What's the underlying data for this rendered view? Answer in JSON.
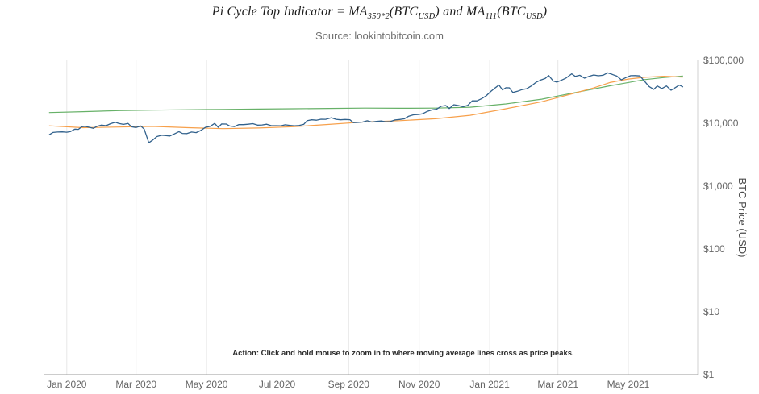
{
  "header": {
    "title": {
      "p0": "Pi Cycle Top Indicator = MA",
      "s0": "350*2",
      "p1": "(BTC",
      "s1": "USD",
      "p2": ") and MA",
      "s2": "111",
      "p3": "(BTC",
      "s3": "USD",
      "p4": ")"
    },
    "source": "Source: lookintobitcoin.com"
  },
  "chart_data": {
    "type": "line",
    "title": "Pi Cycle Top Indicator = MA350*2(BTCUSD) and MA111(BTCUSD)",
    "source": "Source: lookintobitcoin.com",
    "annotation": "Action: Click and hold mouse to zoom in to where moving average lines cross as price peaks.",
    "legend": "off",
    "x_axis": {
      "domain": [
        "2019-12-14",
        "2021-06-30"
      ],
      "ticks": [
        {
          "label": "Jan 2020",
          "date": "2020-01-01"
        },
        {
          "label": "Mar 2020",
          "date": "2020-03-01"
        },
        {
          "label": "May 2020",
          "date": "2020-05-01"
        },
        {
          "label": "Jul 2020",
          "date": "2020-07-01"
        },
        {
          "label": "Sep 2020",
          "date": "2020-09-01"
        },
        {
          "label": "Nov 2020",
          "date": "2020-11-01"
        },
        {
          "label": "Jan 2021",
          "date": "2021-01-01"
        },
        {
          "label": "Mar 2021",
          "date": "2021-03-01"
        },
        {
          "label": "May 2021",
          "date": "2021-05-01"
        }
      ]
    },
    "y_axis": {
      "label": "BTC Price (USD)",
      "scale": "log",
      "domain": [
        1,
        100000
      ],
      "ticks": [
        {
          "label": "$100,000",
          "value": 100000
        },
        {
          "label": "$10,000",
          "value": 10000
        },
        {
          "label": "$1,000",
          "value": 1000
        },
        {
          "label": "$100",
          "value": 100
        },
        {
          "label": "$10",
          "value": 10
        },
        {
          "label": "$1",
          "value": 1
        }
      ]
    },
    "style": {
      "grid_color": "#e6e6e6",
      "bottom_axis_color": "#9a9a9a",
      "right_axis_color": "#d2d2d2",
      "tick_label_color": "#666666",
      "axis_title_color": "#4d4d4d",
      "annotation_color": "#2b2b2b",
      "background": "#ffffff"
    },
    "series": [
      {
        "id": "ma-350x2",
        "name": "MA350*2 (BTCUSD)",
        "color": "#67b168",
        "width": 1.2,
        "points": [
          [
            "2019-12-17",
            14800
          ],
          [
            "2020-01-15",
            15300
          ],
          [
            "2020-02-15",
            15900
          ],
          [
            "2020-03-15",
            16200
          ],
          [
            "2020-04-15",
            16400
          ],
          [
            "2020-05-15",
            16600
          ],
          [
            "2020-06-15",
            16800
          ],
          [
            "2020-07-15",
            17000
          ],
          [
            "2020-08-15",
            17200
          ],
          [
            "2020-09-15",
            17400
          ],
          [
            "2020-10-15",
            17300
          ],
          [
            "2020-11-15",
            17400
          ],
          [
            "2020-12-15",
            18000
          ],
          [
            "2021-01-15",
            20300
          ],
          [
            "2021-02-15",
            24200
          ],
          [
            "2021-03-15",
            30500
          ],
          [
            "2021-04-15",
            39500
          ],
          [
            "2021-05-15",
            49500
          ],
          [
            "2021-06-01",
            53500
          ],
          [
            "2021-06-17",
            56500
          ]
        ]
      },
      {
        "id": "ma-111",
        "name": "MA111 (BTCUSD)",
        "color": "#f7a04b",
        "width": 1.2,
        "points": [
          [
            "2019-12-17",
            9100
          ],
          [
            "2020-01-15",
            8500
          ],
          [
            "2020-02-15",
            8700
          ],
          [
            "2020-03-15",
            8900
          ],
          [
            "2020-04-15",
            8500
          ],
          [
            "2020-05-15",
            8200
          ],
          [
            "2020-06-15",
            8400
          ],
          [
            "2020-07-15",
            8800
          ],
          [
            "2020-08-15",
            9600
          ],
          [
            "2020-09-15",
            10500
          ],
          [
            "2020-10-15",
            11000
          ],
          [
            "2020-11-15",
            11800
          ],
          [
            "2020-12-15",
            13400
          ],
          [
            "2021-01-15",
            17000
          ],
          [
            "2021-02-15",
            22000
          ],
          [
            "2021-03-15",
            30000
          ],
          [
            "2021-04-01",
            36500
          ],
          [
            "2021-04-15",
            44500
          ],
          [
            "2021-05-01",
            50500
          ],
          [
            "2021-05-15",
            54000
          ],
          [
            "2021-06-01",
            56000
          ],
          [
            "2021-06-17",
            54500
          ]
        ]
      },
      {
        "id": "btc-price",
        "name": "BTC Price (USD)",
        "color": "#31618c",
        "width": 1.3,
        "points": [
          [
            "2019-12-17",
            6600
          ],
          [
            "2019-12-20",
            7150
          ],
          [
            "2019-12-24",
            7250
          ],
          [
            "2019-12-28",
            7300
          ],
          [
            "2020-01-01",
            7200
          ],
          [
            "2020-01-04",
            7350
          ],
          [
            "2020-01-08",
            8050
          ],
          [
            "2020-01-11",
            8000
          ],
          [
            "2020-01-14",
            8800
          ],
          [
            "2020-01-17",
            8900
          ],
          [
            "2020-01-20",
            8650
          ],
          [
            "2020-01-24",
            8300
          ],
          [
            "2020-01-27",
            8900
          ],
          [
            "2020-01-31",
            9350
          ],
          [
            "2020-02-04",
            9150
          ],
          [
            "2020-02-08",
            9850
          ],
          [
            "2020-02-12",
            10350
          ],
          [
            "2020-02-15",
            9950
          ],
          [
            "2020-02-19",
            9600
          ],
          [
            "2020-02-23",
            9950
          ],
          [
            "2020-02-26",
            8800
          ],
          [
            "2020-03-01",
            8550
          ],
          [
            "2020-03-05",
            9050
          ],
          [
            "2020-03-08",
            8050
          ],
          [
            "2020-03-12",
            4900
          ],
          [
            "2020-03-15",
            5350
          ],
          [
            "2020-03-19",
            6150
          ],
          [
            "2020-03-23",
            6450
          ],
          [
            "2020-03-27",
            6350
          ],
          [
            "2020-03-30",
            6250
          ],
          [
            "2020-04-03",
            6750
          ],
          [
            "2020-04-07",
            7350
          ],
          [
            "2020-04-10",
            6900
          ],
          [
            "2020-04-14",
            6850
          ],
          [
            "2020-04-18",
            7250
          ],
          [
            "2020-04-22",
            7100
          ],
          [
            "2020-04-26",
            7700
          ],
          [
            "2020-04-30",
            8600
          ],
          [
            "2020-05-04",
            8900
          ],
          [
            "2020-05-08",
            9950
          ],
          [
            "2020-05-11",
            8600
          ],
          [
            "2020-05-14",
            9750
          ],
          [
            "2020-05-18",
            9700
          ],
          [
            "2020-05-21",
            9050
          ],
          [
            "2020-05-25",
            8850
          ],
          [
            "2020-05-29",
            9550
          ],
          [
            "2020-06-02",
            9500
          ],
          [
            "2020-06-06",
            9650
          ],
          [
            "2020-06-10",
            9850
          ],
          [
            "2020-06-14",
            9350
          ],
          [
            "2020-06-18",
            9400
          ],
          [
            "2020-06-22",
            9650
          ],
          [
            "2020-06-26",
            9150
          ],
          [
            "2020-06-30",
            9150
          ],
          [
            "2020-07-04",
            9100
          ],
          [
            "2020-07-08",
            9450
          ],
          [
            "2020-07-12",
            9250
          ],
          [
            "2020-07-16",
            9100
          ],
          [
            "2020-07-20",
            9200
          ],
          [
            "2020-07-24",
            9600
          ],
          [
            "2020-07-27",
            11000
          ],
          [
            "2020-07-31",
            11350
          ],
          [
            "2020-08-04",
            11200
          ],
          [
            "2020-08-08",
            11600
          ],
          [
            "2020-08-12",
            11550
          ],
          [
            "2020-08-17",
            12250
          ],
          [
            "2020-08-21",
            11550
          ],
          [
            "2020-08-25",
            11350
          ],
          [
            "2020-08-29",
            11500
          ],
          [
            "2020-09-02",
            11400
          ],
          [
            "2020-09-05",
            10250
          ],
          [
            "2020-09-09",
            10300
          ],
          [
            "2020-09-13",
            10450
          ],
          [
            "2020-09-17",
            10950
          ],
          [
            "2020-09-21",
            10450
          ],
          [
            "2020-09-25",
            10700
          ],
          [
            "2020-09-29",
            10850
          ],
          [
            "2020-10-03",
            10550
          ],
          [
            "2020-10-07",
            10650
          ],
          [
            "2020-10-11",
            11300
          ],
          [
            "2020-10-15",
            11500
          ],
          [
            "2020-10-19",
            11750
          ],
          [
            "2020-10-23",
            12950
          ],
          [
            "2020-10-27",
            13650
          ],
          [
            "2020-10-31",
            13800
          ],
          [
            "2020-11-04",
            14150
          ],
          [
            "2020-11-08",
            15500
          ],
          [
            "2020-11-12",
            16300
          ],
          [
            "2020-11-16",
            16700
          ],
          [
            "2020-11-20",
            18650
          ],
          [
            "2020-11-24",
            19150
          ],
          [
            "2020-11-27",
            17150
          ],
          [
            "2020-12-01",
            19700
          ],
          [
            "2020-12-05",
            19150
          ],
          [
            "2020-12-09",
            18300
          ],
          [
            "2020-12-13",
            19250
          ],
          [
            "2020-12-17",
            22800
          ],
          [
            "2020-12-21",
            22700
          ],
          [
            "2020-12-25",
            24700
          ],
          [
            "2020-12-29",
            27350
          ],
          [
            "2021-01-02",
            32200
          ],
          [
            "2021-01-06",
            36850
          ],
          [
            "2021-01-09",
            40600
          ],
          [
            "2021-01-12",
            34050
          ],
          [
            "2021-01-15",
            36800
          ],
          [
            "2021-01-18",
            36650
          ],
          [
            "2021-01-21",
            30850
          ],
          [
            "2021-01-25",
            32250
          ],
          [
            "2021-01-29",
            34300
          ],
          [
            "2021-02-02",
            35500
          ],
          [
            "2021-02-06",
            39250
          ],
          [
            "2021-02-10",
            44850
          ],
          [
            "2021-02-14",
            48600
          ],
          [
            "2021-02-18",
            51600
          ],
          [
            "2021-02-21",
            57500
          ],
          [
            "2021-02-25",
            47100
          ],
          [
            "2021-02-28",
            45150
          ],
          [
            "2021-03-04",
            48350
          ],
          [
            "2021-03-08",
            52400
          ],
          [
            "2021-03-13",
            61200
          ],
          [
            "2021-03-16",
            55900
          ],
          [
            "2021-03-20",
            58100
          ],
          [
            "2021-03-24",
            52300
          ],
          [
            "2021-03-28",
            55950
          ],
          [
            "2021-04-01",
            58750
          ],
          [
            "2021-04-05",
            57050
          ],
          [
            "2021-04-09",
            58050
          ],
          [
            "2021-04-13",
            63500
          ],
          [
            "2021-04-17",
            60050
          ],
          [
            "2021-04-21",
            56450
          ],
          [
            "2021-04-25",
            49100
          ],
          [
            "2021-04-29",
            53550
          ],
          [
            "2021-05-03",
            57200
          ],
          [
            "2021-05-07",
            57350
          ],
          [
            "2021-05-11",
            56700
          ],
          [
            "2021-05-15",
            46750
          ],
          [
            "2021-05-19",
            38400
          ],
          [
            "2021-05-23",
            34700
          ],
          [
            "2021-05-26",
            39250
          ],
          [
            "2021-05-30",
            35650
          ],
          [
            "2021-06-03",
            39200
          ],
          [
            "2021-06-07",
            33550
          ],
          [
            "2021-06-11",
            37350
          ],
          [
            "2021-06-14",
            40500
          ],
          [
            "2021-06-17",
            38100
          ]
        ]
      }
    ]
  }
}
